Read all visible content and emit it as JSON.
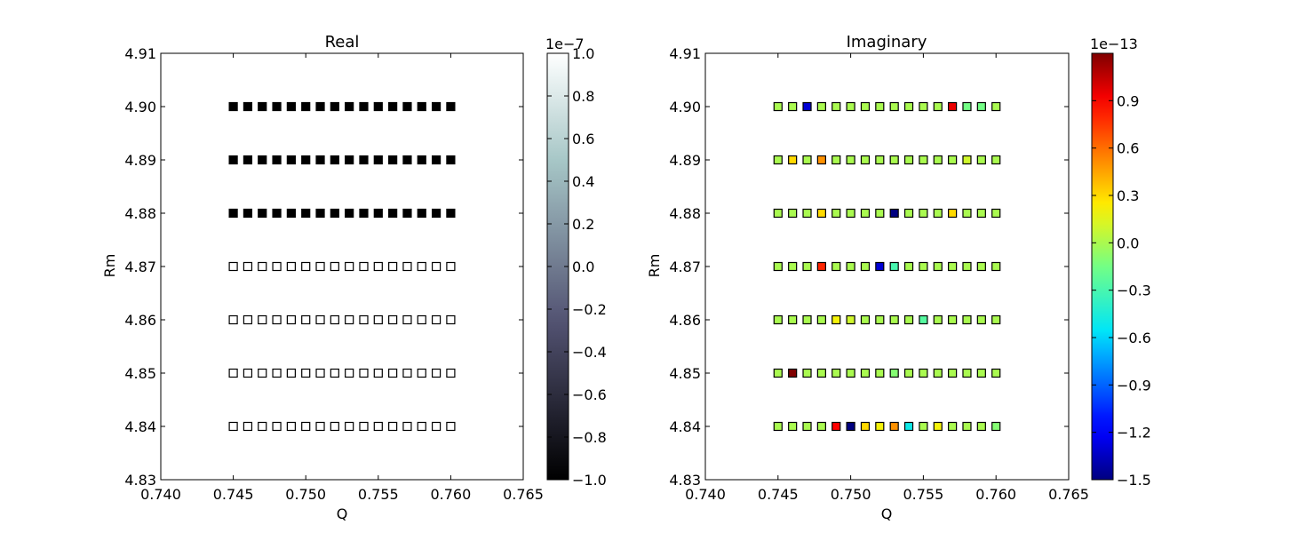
{
  "chart_data": [
    {
      "type": "scatter",
      "title": "Real",
      "xlabel": "Q",
      "ylabel": "Rm",
      "xlim": [
        0.74,
        0.765
      ],
      "ylim": [
        4.83,
        4.91
      ],
      "x_ticks": [
        "0.740",
        "0.745",
        "0.750",
        "0.755",
        "0.760",
        "0.765"
      ],
      "y_ticks": [
        "4.83",
        "4.84",
        "4.85",
        "4.86",
        "4.87",
        "4.88",
        "4.89",
        "4.90",
        "4.91"
      ],
      "marker": "square",
      "grid": false,
      "colormap": "bone",
      "colorbar": {
        "offset": "1e−7",
        "range": [
          -1.0,
          1.0
        ],
        "ticks": [
          "−1.0",
          "−0.8",
          "−0.6",
          "−0.4",
          "−0.2",
          "0.0",
          "0.2",
          "0.4",
          "0.6",
          "0.8",
          "1.0"
        ]
      },
      "x": [
        0.745,
        0.746,
        0.747,
        0.748,
        0.749,
        0.75,
        0.751,
        0.752,
        0.753,
        0.754,
        0.755,
        0.756,
        0.757,
        0.758,
        0.759,
        0.76
      ],
      "y": [
        4.84,
        4.85,
        4.86,
        4.87,
        4.88,
        4.89,
        4.9
      ],
      "values": [
        [
          1,
          1,
          1,
          1,
          1,
          1,
          1,
          1,
          1,
          1,
          1,
          1,
          1,
          1,
          1,
          1
        ],
        [
          1,
          1,
          1,
          1,
          1,
          1,
          1,
          1,
          1,
          1,
          1,
          1,
          1,
          1,
          1,
          1
        ],
        [
          1,
          1,
          1,
          1,
          1,
          1,
          1,
          1,
          1,
          1,
          1,
          1,
          1,
          1,
          1,
          1
        ],
        [
          1,
          1,
          1,
          1,
          1,
          1,
          1,
          1,
          1,
          1,
          1,
          1,
          1,
          1,
          1,
          1
        ],
        [
          -1,
          -1,
          -1,
          -1,
          -1,
          -1,
          -1,
          -1,
          -1,
          -1,
          -1,
          -1,
          -1,
          -1,
          -1,
          -1
        ],
        [
          -1,
          -1,
          -1,
          -1,
          -1,
          -1,
          -1,
          -1,
          -1,
          -1,
          -1,
          -1,
          -1,
          -1,
          -1,
          -1
        ],
        [
          -1,
          -1,
          -1,
          -1,
          -1,
          -1,
          -1,
          -1,
          -1,
          -1,
          -1,
          -1,
          -1,
          -1,
          -1,
          -1
        ]
      ]
    },
    {
      "type": "scatter",
      "title": "Imaginary",
      "xlabel": "Q",
      "ylabel": "Rm",
      "xlim": [
        0.74,
        0.765
      ],
      "ylim": [
        4.83,
        4.91
      ],
      "x_ticks": [
        "0.740",
        "0.745",
        "0.750",
        "0.755",
        "0.760",
        "0.765"
      ],
      "y_ticks": [
        "4.83",
        "4.84",
        "4.85",
        "4.86",
        "4.87",
        "4.88",
        "4.89",
        "4.90",
        "4.91"
      ],
      "marker": "square",
      "grid": false,
      "colormap": "jet",
      "colorbar": {
        "offset": "1e−13",
        "range": [
          -1.5,
          1.2
        ],
        "ticks": [
          "−1.5",
          "−1.2",
          "−0.9",
          "−0.6",
          "−0.3",
          "0.0",
          "0.3",
          "0.6",
          "0.9"
        ],
        "tick_values": [
          -1.5,
          -1.2,
          -0.9,
          -0.6,
          -0.3,
          0.0,
          0.3,
          0.6,
          0.9
        ]
      },
      "x": [
        0.745,
        0.746,
        0.747,
        0.748,
        0.749,
        0.75,
        0.751,
        0.752,
        0.753,
        0.754,
        0.755,
        0.756,
        0.757,
        0.758,
        0.759,
        0.76
      ],
      "y": [
        4.84,
        4.85,
        4.86,
        4.87,
        4.88,
        4.89,
        4.9
      ],
      "values": [
        [
          0.0,
          0.0,
          0.0,
          0.0,
          0.9,
          -1.5,
          0.3,
          0.2,
          0.5,
          -0.5,
          0.0,
          0.2,
          0.0,
          0.0,
          0.0,
          -0.1
        ],
        [
          0.0,
          1.2,
          0.0,
          0.0,
          0.0,
          0.0,
          0.0,
          0.0,
          -0.1,
          0.0,
          0.0,
          0.0,
          0.0,
          0.0,
          0.0,
          0.0
        ],
        [
          0.0,
          0.0,
          0.0,
          0.0,
          0.2,
          0.1,
          0.0,
          0.0,
          0.0,
          0.0,
          -0.25,
          0.0,
          0.0,
          0.0,
          0.0,
          0.0
        ],
        [
          0.0,
          0.0,
          0.0,
          0.8,
          0.0,
          0.0,
          0.0,
          -1.3,
          -0.3,
          0.0,
          0.0,
          0.0,
          0.0,
          0.0,
          0.0,
          0.0
        ],
        [
          0.0,
          0.0,
          0.0,
          0.3,
          0.0,
          0.0,
          0.0,
          0.0,
          -1.5,
          0.0,
          0.0,
          0.0,
          0.3,
          0.0,
          0.0,
          0.0
        ],
        [
          0.0,
          0.3,
          0.0,
          0.5,
          0.0,
          0.0,
          0.0,
          0.0,
          0.0,
          0.0,
          0.0,
          0.0,
          0.0,
          0.1,
          0.0,
          0.0
        ],
        [
          0.0,
          0.0,
          -1.3,
          0.0,
          0.0,
          0.0,
          0.0,
          0.0,
          0.0,
          0.0,
          0.0,
          0.0,
          0.95,
          -0.15,
          -0.15,
          0.0
        ]
      ]
    }
  ]
}
